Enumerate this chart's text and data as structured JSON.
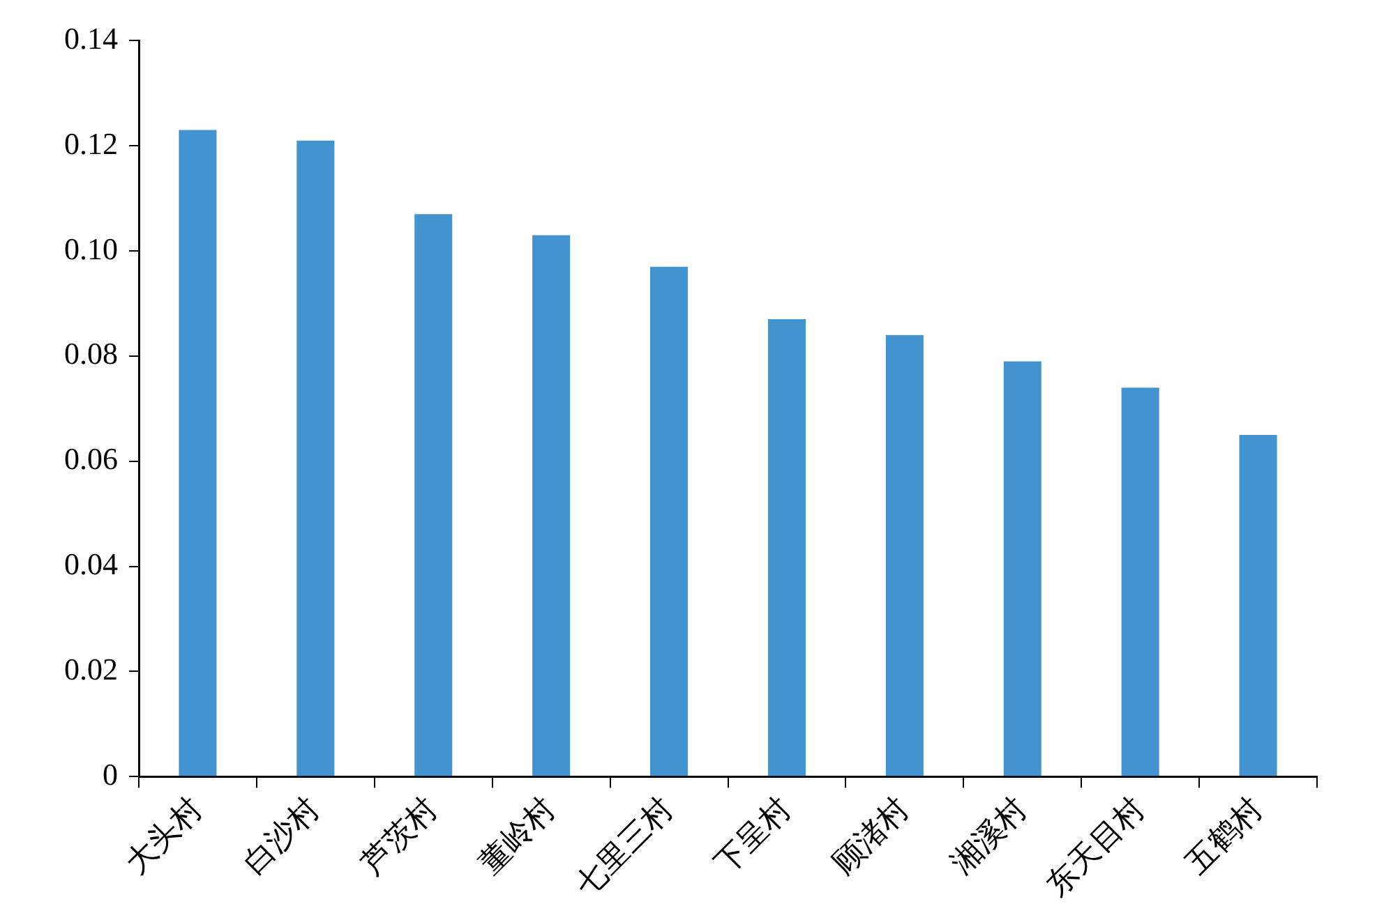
{
  "chart_data": {
    "type": "bar",
    "categories": [
      "大头村",
      "白沙村",
      "芦茨村",
      "董岭村",
      "七里三村",
      "下呈村",
      "顾渚村",
      "湘溪村",
      "东天目村",
      "五鹤村"
    ],
    "values": [
      0.123,
      0.121,
      0.107,
      0.103,
      0.097,
      0.087,
      0.084,
      0.079,
      0.074,
      0.065
    ],
    "color": "#4293d0",
    "ylim": [
      0,
      0.14
    ],
    "yticks": [
      {
        "value": 0,
        "label": "0"
      },
      {
        "value": 0.02,
        "label": "0.02"
      },
      {
        "value": 0.04,
        "label": "0.04"
      },
      {
        "value": 0.06,
        "label": "0.06"
      },
      {
        "value": 0.08,
        "label": "0.08"
      },
      {
        "value": 0.1,
        "label": "0.10"
      },
      {
        "value": 0.12,
        "label": "0.12"
      },
      {
        "value": 0.14,
        "label": "0.14"
      }
    ]
  }
}
